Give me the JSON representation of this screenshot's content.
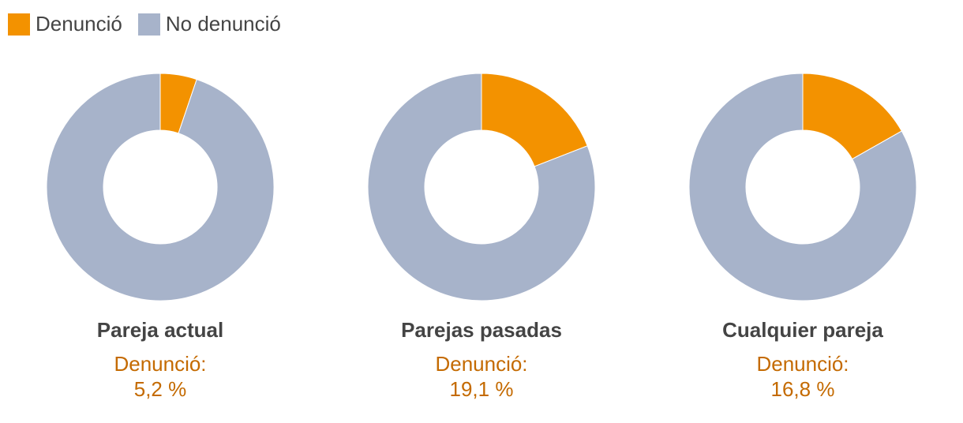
{
  "legend": [
    {
      "label": "Denunció",
      "color": "#f39200"
    },
    {
      "label": "No denunció",
      "color": "#a7b3ca"
    }
  ],
  "chart_data": [
    {
      "type": "pie",
      "title": "Pareja actual",
      "categories": [
        "Denunció",
        "No denunció"
      ],
      "values": [
        5.2,
        94.8
      ],
      "colors": [
        "#f39200",
        "#a7b3ca"
      ],
      "label_prefix": "Denunció:",
      "label_value": "5,2 %"
    },
    {
      "type": "pie",
      "title": "Parejas pasadas",
      "categories": [
        "Denunció",
        "No denunció"
      ],
      "values": [
        19.1,
        80.9
      ],
      "colors": [
        "#f39200",
        "#a7b3ca"
      ],
      "label_prefix": "Denunció:",
      "label_value": "19,1 %"
    },
    {
      "type": "pie",
      "title": "Cualquier pareja",
      "categories": [
        "Denunció",
        "No denunció"
      ],
      "values": [
        16.8,
        83.2
      ],
      "colors": [
        "#f39200",
        "#a7b3ca"
      ],
      "label_prefix": "Denunció:",
      "label_value": "16,8 %"
    }
  ]
}
